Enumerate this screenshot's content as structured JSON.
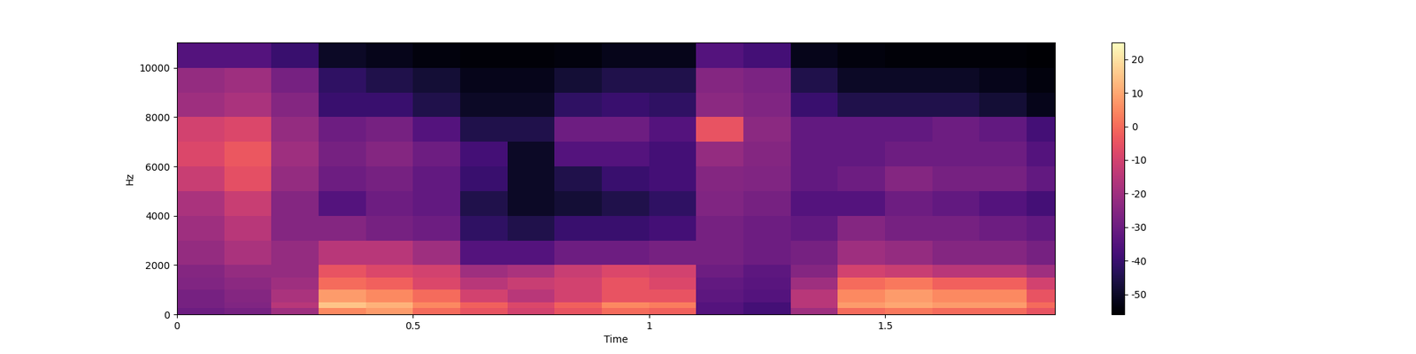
{
  "chart_data": {
    "type": "heatmap",
    "x_label": "Time",
    "y_label": "Hz",
    "xlim": [
      0,
      1.86
    ],
    "xticks": [
      0,
      0.5,
      1,
      1.5
    ],
    "ylim": [
      0,
      11025
    ],
    "yticks": [
      0,
      2000,
      4000,
      6000,
      8000,
      10000
    ],
    "color": "magma",
    "x_edges": [
      0,
      0.1,
      0.2,
      0.3,
      0.4,
      0.5,
      0.6,
      0.7,
      0.8,
      0.9,
      1.0,
      1.1,
      1.2,
      1.3,
      1.4,
      1.5,
      1.6,
      1.7,
      1.8,
      1.86
    ],
    "y_edges": [
      0,
      250,
      500,
      1000,
      1500,
      2000,
      3000,
      4000,
      5000,
      6000,
      7000,
      8000,
      9000,
      10000,
      11025
    ],
    "cells": [
      [
        -30,
        -28,
        -20,
        5,
        8,
        0,
        -5,
        -10,
        -5,
        0,
        -2,
        -35,
        -38,
        -20,
        0,
        2,
        0,
        0,
        -5
      ],
      [
        -28,
        -26,
        -15,
        15,
        12,
        5,
        -2,
        -8,
        -2,
        5,
        3,
        -35,
        -38,
        -15,
        8,
        10,
        8,
        8,
        0
      ],
      [
        -28,
        -25,
        -18,
        8,
        5,
        0,
        -10,
        -15,
        -10,
        -5,
        -5,
        -33,
        -35,
        -15,
        5,
        8,
        5,
        5,
        -5
      ],
      [
        -26,
        -24,
        -20,
        0,
        -2,
        -8,
        -15,
        -12,
        -10,
        -5,
        -8,
        -32,
        -34,
        -20,
        0,
        2,
        -2,
        -2,
        -10
      ],
      [
        -25,
        -22,
        -22,
        -5,
        -8,
        -10,
        -20,
        -18,
        -12,
        -8,
        -10,
        -30,
        -33,
        -25,
        -10,
        -12,
        -15,
        -15,
        -20
      ],
      [
        -22,
        -18,
        -22,
        -15,
        -15,
        -20,
        -35,
        -35,
        -30,
        -30,
        -28,
        -28,
        -30,
        -28,
        -20,
        -22,
        -25,
        -25,
        -28
      ],
      [
        -20,
        -15,
        -25,
        -25,
        -28,
        -30,
        -42,
        -45,
        -40,
        -40,
        -38,
        -28,
        -30,
        -32,
        -25,
        -28,
        -28,
        -30,
        -32
      ],
      [
        -18,
        -12,
        -25,
        -35,
        -30,
        -32,
        -45,
        -50,
        -48,
        -45,
        -42,
        -26,
        -28,
        -35,
        -35,
        -30,
        -32,
        -35,
        -38
      ],
      [
        -12,
        -6,
        -22,
        -30,
        -28,
        -32,
        -40,
        -50,
        -45,
        -40,
        -38,
        -25,
        -26,
        -32,
        -30,
        -25,
        -28,
        -28,
        -32
      ],
      [
        -8,
        -4,
        -20,
        -28,
        -25,
        -30,
        -38,
        -50,
        -35,
        -35,
        -38,
        -22,
        -25,
        -32,
        -32,
        -30,
        -30,
        -30,
        -35
      ],
      [
        -10,
        -8,
        -22,
        -30,
        -28,
        -35,
        -45,
        -45,
        -30,
        -30,
        -35,
        -5,
        -24,
        -32,
        -32,
        -32,
        -30,
        -32,
        -38
      ],
      [
        -20,
        -18,
        -25,
        -40,
        -40,
        -45,
        -50,
        -50,
        -42,
        -40,
        -42,
        -24,
        -26,
        -40,
        -45,
        -45,
        -45,
        -48,
        -52
      ],
      [
        -22,
        -20,
        -28,
        -42,
        -45,
        -48,
        -52,
        -52,
        -48,
        -45,
        -45,
        -25,
        -27,
        -45,
        -50,
        -50,
        -50,
        -52,
        -54
      ],
      [
        -35,
        -35,
        -40,
        -50,
        -52,
        -54,
        -55,
        -55,
        -54,
        -52,
        -52,
        -35,
        -38,
        -52,
        -54,
        -55,
        -55,
        -55,
        -56
      ]
    ],
    "color_range": [
      -56,
      25
    ],
    "color_ticks": [
      -50,
      -40,
      -30,
      -20,
      -10,
      0,
      10,
      20
    ]
  }
}
